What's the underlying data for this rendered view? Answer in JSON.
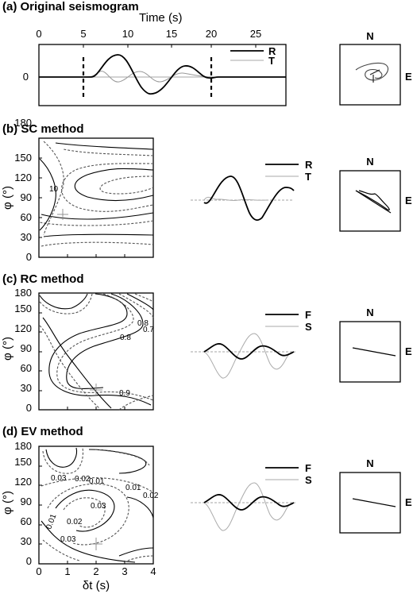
{
  "panels": [
    {
      "id": "a",
      "title": "(a) Original seismogram",
      "xlabel": "Time (s)",
      "xticks": [
        "0",
        "5",
        "10",
        "15",
        "20",
        "25"
      ],
      "yticks": [
        "0"
      ],
      "legend": [
        "R",
        "T"
      ],
      "compass": [
        "N",
        "E"
      ]
    },
    {
      "id": "b",
      "title": "(b) SC method",
      "yticks": [
        "0",
        "30",
        "60",
        "90",
        "120",
        "150",
        "180"
      ],
      "ylabel": "φ (°)",
      "contour_labels": [
        "10"
      ],
      "legend": [
        "R",
        "T"
      ],
      "compass": [
        "N",
        "E"
      ]
    },
    {
      "id": "c",
      "title": "(c) RC method",
      "yticks": [
        "0",
        "30",
        "60",
        "90",
        "120",
        "150",
        "180"
      ],
      "ylabel": "φ (°)",
      "contour_labels": [
        "0.8",
        "0.8",
        "0.7",
        "0.9"
      ],
      "legend": [
        "F",
        "S"
      ],
      "compass": [
        "N",
        "E"
      ]
    },
    {
      "id": "d",
      "title": "(d) EV method",
      "yticks": [
        "0",
        "30",
        "60",
        "90",
        "120",
        "150",
        "180"
      ],
      "ylabel": "φ (°)",
      "xticks": [
        "0",
        "1",
        "2",
        "3",
        "4"
      ],
      "xlabel": "δt (s)",
      "contour_labels": [
        "0.03",
        "0.02",
        "0.01",
        "0.01",
        "0.02",
        "0.03",
        "0.02",
        "0.01",
        "0.03"
      ],
      "legend": [
        "F",
        "S"
      ],
      "compass": [
        "N",
        "E"
      ]
    }
  ],
  "chart_data": [
    {
      "type": "line",
      "panel": "a",
      "xlim": [
        0,
        28
      ],
      "markers_x": [
        5,
        20
      ],
      "series": [
        {
          "name": "R"
        },
        {
          "name": "T"
        }
      ]
    },
    {
      "type": "heatmap",
      "panel": "b",
      "xlim": [
        0,
        4
      ],
      "ylim": [
        0,
        180
      ],
      "best_fit": {
        "x": 0.8,
        "y": 67
      }
    },
    {
      "type": "heatmap",
      "panel": "c",
      "xlim": [
        0,
        4
      ],
      "ylim": [
        0,
        180
      ],
      "best_fit": {
        "x": 2.0,
        "y": 30
      }
    },
    {
      "type": "heatmap",
      "panel": "d",
      "xlim": [
        0,
        4
      ],
      "ylim": [
        0,
        180
      ],
      "best_fit": {
        "x": 2.0,
        "y": 30
      }
    }
  ]
}
